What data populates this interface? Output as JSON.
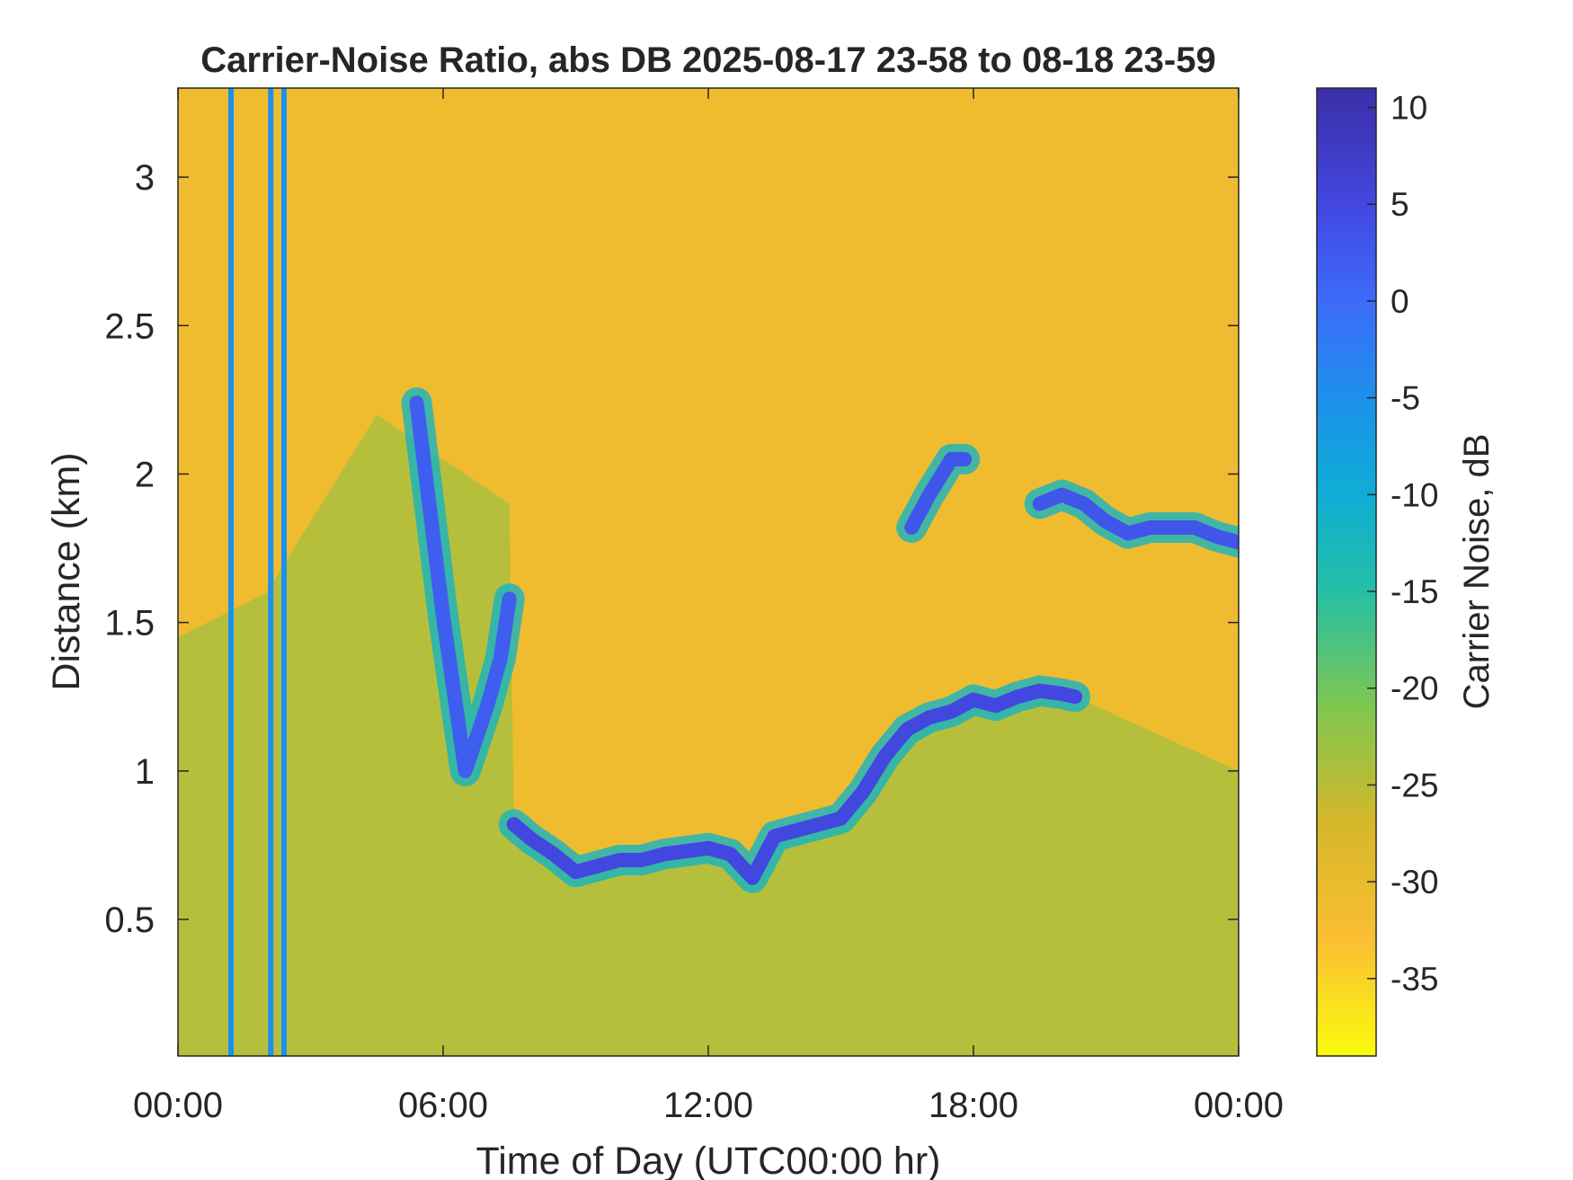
{
  "chart_data": {
    "type": "heatmap",
    "title": "Carrier-Noise Ratio, abs DB 2025-08-17 23-58 to 08-18 23-59",
    "xlabel": "Time of Day (UTC00:00 hr)",
    "ylabel": "Distance (km)",
    "x_unit": "hours (UTC)",
    "xlim": [
      0,
      24
    ],
    "ylim": [
      0.04,
      3.3
    ],
    "x_ticks": [
      0,
      6,
      12,
      18,
      24
    ],
    "x_tick_labels": [
      "00:00",
      "06:00",
      "12:00",
      "18:00",
      "00:00"
    ],
    "y_ticks": [
      0.5,
      1,
      1.5,
      2,
      2.5,
      3
    ],
    "y_tick_labels": [
      "0.5",
      "1",
      "1.5",
      "2",
      "2.5",
      "3"
    ],
    "grid": false,
    "colorbar": {
      "label": "Carrier Noise, dB",
      "range": [
        -39,
        11
      ],
      "ticks": [
        10,
        5,
        0,
        -5,
        -10,
        -15,
        -20,
        -25,
        -30,
        -35
      ],
      "tick_labels": [
        "10",
        "5",
        "0",
        "-5",
        "-10",
        "-15",
        "-20",
        "-25",
        "-30",
        "-35"
      ],
      "colormap": [
        [
          -39,
          "#f9fb0e"
        ],
        [
          -33,
          "#fbbe32"
        ],
        [
          -27,
          "#d6b72a"
        ],
        [
          -21,
          "#7fc74f"
        ],
        [
          -15,
          "#24bfa6"
        ],
        [
          -10,
          "#0fadd5"
        ],
        [
          -5,
          "#1d90ec"
        ],
        [
          0,
          "#3d6bf9"
        ],
        [
          5,
          "#4247e0"
        ],
        [
          11,
          "#3b2ea8"
        ]
      ]
    },
    "background_level_db": -31,
    "features": [
      {
        "name": "boundary layer top (strong return band)",
        "x": [
          7.6,
          8.0,
          8.5,
          9.0,
          9.5,
          10.0,
          10.5,
          11.0,
          11.5,
          12.0,
          12.5,
          13.0,
          13.5,
          14.0,
          14.5,
          15.0,
          15.5,
          16.0,
          16.5,
          17.0,
          17.5,
          18.0,
          18.5,
          19.0,
          19.5,
          20.0,
          20.3
        ],
        "y": [
          0.82,
          0.77,
          0.72,
          0.66,
          0.68,
          0.7,
          0.7,
          0.72,
          0.73,
          0.74,
          0.72,
          0.64,
          0.78,
          0.8,
          0.82,
          0.84,
          0.93,
          1.05,
          1.14,
          1.18,
          1.2,
          1.24,
          1.22,
          1.25,
          1.27,
          1.26,
          1.25
        ],
        "value_db": 5
      },
      {
        "name": "aerosol layer 2 km (evening)",
        "x": [
          19.5,
          20.0,
          20.5,
          21.0,
          21.5,
          22.0,
          22.5,
          23.0,
          23.5,
          24.0
        ],
        "y": [
          1.9,
          1.93,
          1.9,
          1.84,
          1.8,
          1.82,
          1.82,
          1.82,
          1.79,
          1.77
        ],
        "value_db": 3
      },
      {
        "name": "rising layer 2 km (afternoon)",
        "x": [
          16.6,
          17.0,
          17.5,
          17.8
        ],
        "y": [
          1.82,
          1.93,
          2.05,
          2.05
        ],
        "value_db": 3
      },
      {
        "name": "night cloud layer",
        "x": [
          5.4,
          6.0,
          6.5,
          7.0,
          7.3,
          7.5
        ],
        "y": [
          2.24,
          1.52,
          1.0,
          1.22,
          1.38,
          1.58
        ],
        "value_db": 2
      },
      {
        "name": "vertical precipitation streaks",
        "x": [
          1.2,
          2.1,
          2.4
        ],
        "y_range": [
          0.04,
          3.3
        ],
        "value_db": -5
      }
    ]
  }
}
